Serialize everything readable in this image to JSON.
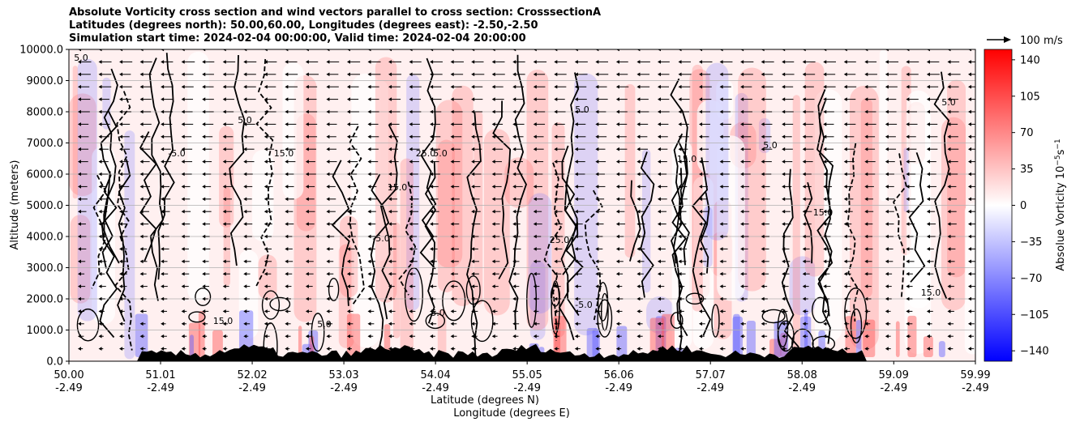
{
  "chart_data": {
    "type": "heatmap",
    "title_lines": [
      "Absolute Vorticity cross section and wind vectors parallel to cross section: CrosssectionA",
      "Latitudes (degrees north): 50.00,60.00, Longitudes (degrees east): -2.50,-2.50",
      "Simulation start time: 2024-02-04 00:00:00, Valid time: 2024-02-04 20:00:00"
    ],
    "ylabel": "Altitude (meters)",
    "xlabel_lines": [
      "Latitude (degrees N)",
      "Longitude (degrees E)"
    ],
    "y_ticks": [
      "0.0",
      "1000.0",
      "2000.0",
      "3000.0",
      "4000.0",
      "5000.0",
      "6000.0",
      "7000.0",
      "8000.0",
      "9000.0",
      "10000.0"
    ],
    "ylim": [
      0,
      10000
    ],
    "x_ticks_lat": [
      "50.00",
      "51.01",
      "52.02",
      "53.03",
      "54.04",
      "55.05",
      "56.06",
      "57.07",
      "58.08",
      "59.09",
      "59.99"
    ],
    "x_ticks_lon": [
      "-2.49",
      "-2.49",
      "-2.49",
      "-2.49",
      "-2.49",
      "-2.49",
      "-2.49",
      "-2.49",
      "-2.49",
      "-2.49",
      "-2.49"
    ],
    "xlim": [
      50.0,
      59.99
    ],
    "y_grid": true,
    "colorbar": {
      "label": "Absolue Vorticity 10",
      "label_exp_base": "s",
      "label_exp": "−5",
      "label_exp2": "−1",
      "ticks": [
        "140",
        "105",
        "70",
        "35",
        "0",
        "−35",
        "−70",
        "−105",
        "−140"
      ],
      "range": [
        -150,
        150
      ],
      "colors": {
        "neg": "#0000ff",
        "zero": "#ffffff",
        "pos": "#ff0000"
      }
    },
    "quiver_key": {
      "label": "100 m/s"
    },
    "contour_labels": [
      "5.0",
      "-5.0",
      "15.0",
      "25.0",
      "5.0",
      "15.0",
      "-5.0",
      "15.0",
      "5.0",
      "5.0",
      "25.0",
      "15.0",
      "5.0",
      "15.0",
      "5.0",
      "-5.0",
      "15.0",
      "5.0",
      "5.0"
    ]
  }
}
